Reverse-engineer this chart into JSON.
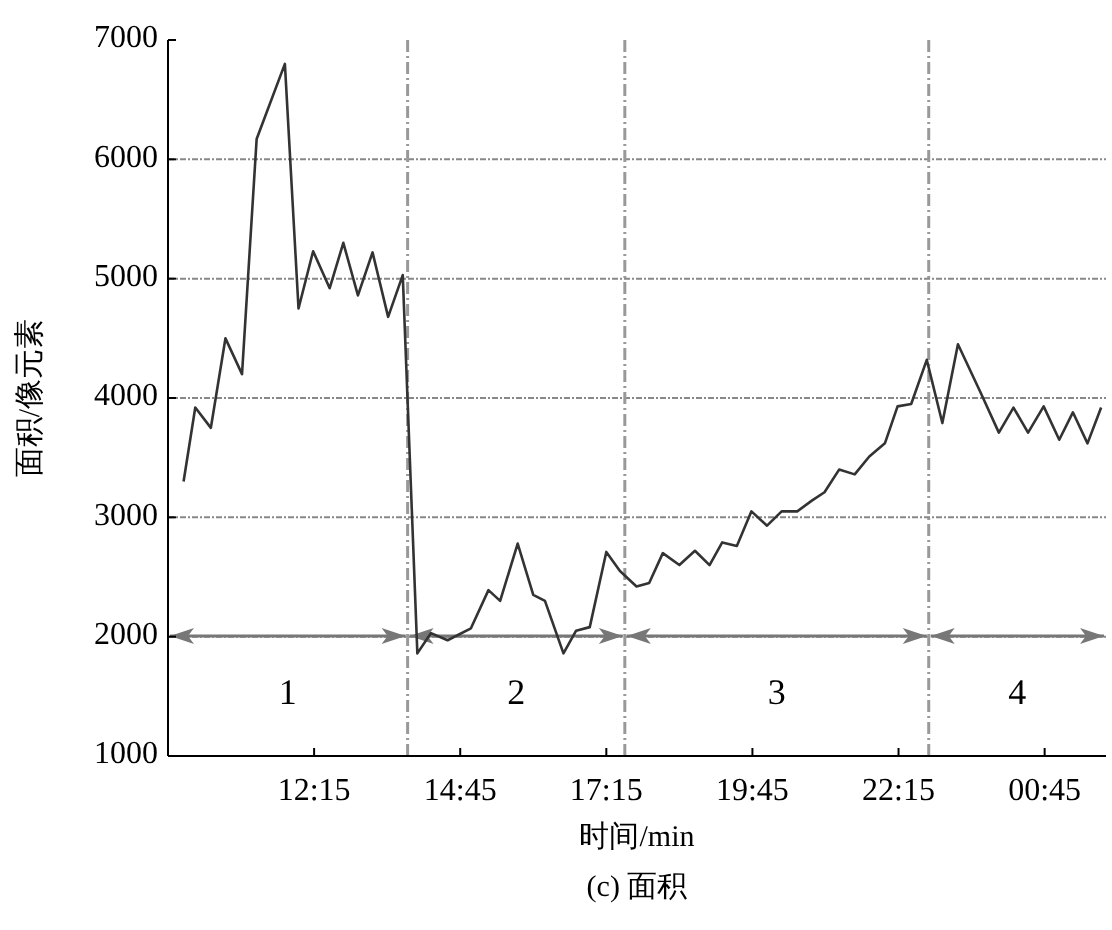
{
  "chart_data": {
    "type": "line",
    "title": "(c) 面积",
    "xlabel": "时间/min",
    "ylabel": "面积/像元素",
    "x": [
      "2000-01-01T10:01",
      "2000-01-01T10:13",
      "2000-01-01T10:29",
      "2000-01-01T10:44",
      "2000-01-01T11:01",
      "2000-01-01T11:16",
      "2000-01-01T11:45",
      "2000-01-01T11:59",
      "2000-01-01T12:14",
      "2000-01-01T12:31",
      "2000-01-01T12:45",
      "2000-01-01T13:00",
      "2000-01-01T13:15",
      "2000-01-01T13:31",
      "2000-01-01T13:46",
      "2000-01-01T14:01",
      "2000-01-01T14:15",
      "2000-01-01T14:32",
      "2000-01-01T14:56",
      "2000-01-01T15:14",
      "2000-01-01T15:26",
      "2000-01-01T15:44",
      "2000-01-01T16:00",
      "2000-01-01T16:12",
      "2000-01-01T16:31",
      "2000-01-01T16:44",
      "2000-01-01T16:58",
      "2000-01-01T17:15",
      "2000-01-01T17:29",
      "2000-01-01T17:46",
      "2000-01-01T17:59",
      "2000-01-01T18:13",
      "2000-01-01T18:30",
      "2000-01-01T18:46",
      "2000-01-01T19:01",
      "2000-01-01T19:14",
      "2000-01-01T19:29",
      "2000-01-01T19:44",
      "2000-01-01T20:00",
      "2000-01-01T20:15",
      "2000-01-01T20:31",
      "2000-01-01T20:46",
      "2000-01-01T20:59",
      "2000-01-01T21:14",
      "2000-01-01T21:30",
      "2000-01-01T21:45",
      "2000-01-01T22:01",
      "2000-01-01T22:14",
      "2000-01-01T22:28",
      "2000-01-01T22:44",
      "2000-01-01T23:00",
      "2000-01-01T23:16",
      "2000-01-01T23:39",
      "2000-01-01T23:58",
      "2000-01-02T00:13",
      "2000-01-02T00:28",
      "2000-01-02T00:44",
      "2000-01-02T01:00",
      "2000-01-02T01:14",
      "2000-01-02T01:29",
      "2000-01-02T01:43"
    ],
    "series": [
      {
        "color": "#333333",
        "values": [
          3300,
          3920,
          3750,
          4500,
          4200,
          6170,
          6800,
          4750,
          5230,
          4920,
          5300,
          4860,
          5220,
          4680,
          5030,
          1860,
          2030,
          1970,
          2070,
          2390,
          2300,
          2780,
          2350,
          2300,
          1860,
          2050,
          2080,
          2710,
          2550,
          2420,
          2450,
          2700,
          2600,
          2720,
          2600,
          2790,
          2760,
          3050,
          2930,
          3050,
          3050,
          3140,
          3210,
          3400,
          3360,
          3510,
          3620,
          3930,
          3950,
          4320,
          3790,
          4450,
          4050,
          3710,
          3920,
          3710,
          3930,
          3650,
          3880,
          3620,
          3920
        ]
      }
    ],
    "xlim": [
      "2000-01-01T09:45",
      "2000-01-02T01:48"
    ],
    "xticks": [
      {
        "value": "2000-01-01T12:15",
        "label": "12:15"
      },
      {
        "value": "2000-01-01T14:45",
        "label": "14:45"
      },
      {
        "value": "2000-01-01T17:15",
        "label": "17:15"
      },
      {
        "value": "2000-01-01T19:45",
        "label": "19:45"
      },
      {
        "value": "2000-01-01T22:15",
        "label": "22:15"
      },
      {
        "value": "2000-01-02T00:45",
        "label": "00:45"
      }
    ],
    "ylim": [
      1000,
      7000
    ],
    "yticks": [
      1000,
      2000,
      3000,
      4000,
      5000,
      6000,
      7000
    ],
    "grid": "y",
    "marker": "none",
    "line_style": "solid",
    "ref_lines": [
      {
        "axis": "x",
        "value": "2000-01-01T13:51",
        "color": "#999999",
        "line_style": "dashed"
      },
      {
        "axis": "x",
        "value": "2000-01-01T17:34",
        "color": "#999999",
        "line_style": "dashed"
      },
      {
        "axis": "x",
        "value": "2000-01-01T22:46",
        "color": "#999999",
        "line_style": "dashed"
      }
    ],
    "annotations": [
      "1",
      "2",
      "3",
      "4"
    ]
  }
}
